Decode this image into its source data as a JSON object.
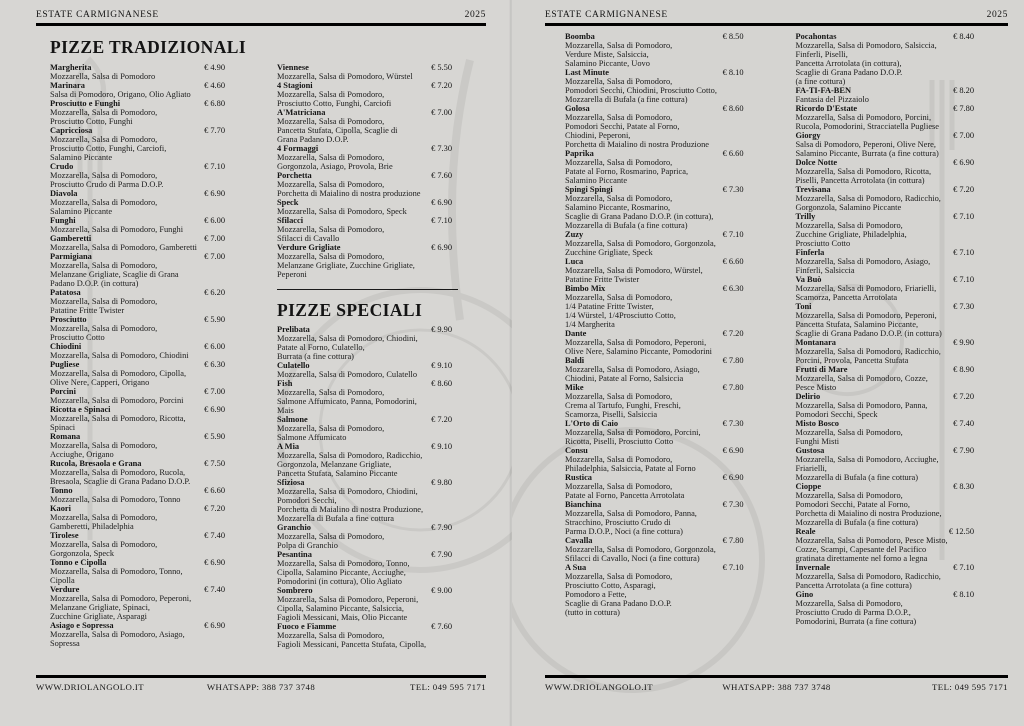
{
  "header": {
    "brand": "ESTATE CARMIGNANESE",
    "year": "2025"
  },
  "footer": {
    "website": "WWW.DRIOLANGOLO.IT",
    "whatsapp": "WHATSAPP: 388 737 3748",
    "phone": "TEL: 049 595 7171"
  },
  "colors": {
    "ink": "#141414",
    "paper": "#d7d6d3",
    "rule": "#000000"
  },
  "pages": [
    {
      "title": "PIZZE TRADIZIONALI",
      "columns": [
        [
          {
            "name": "Margherita",
            "price": "€ 4.90",
            "desc": "Mozzarella, Salsa di Pomodoro"
          },
          {
            "name": "Marinara",
            "price": "€ 4.60",
            "desc": "Salsa di Pomodoro, Origano, Olio Agliato"
          },
          {
            "name": "Prosciutto e Funghi",
            "price": "€ 6.80",
            "desc": "Mozzarella, Salsa di Pomodoro,\nProsciutto Cotto, Funghi"
          },
          {
            "name": "Capricciosa",
            "price": "€ 7.70",
            "desc": "Mozzarella, Salsa di Pomodoro,\nProsciutto Cotto, Funghi, Carciofi,\nSalamino Piccante"
          },
          {
            "name": "Crudo",
            "price": "€ 7.10",
            "desc": "Mozzarella, Salsa di Pomodoro,\nProsciutto Crudo di Parma D.O.P."
          },
          {
            "name": "Diavola",
            "price": "€ 6.90",
            "desc": "Mozzarella, Salsa di Pomodoro,\nSalamino Piccante"
          },
          {
            "name": "Funghi",
            "price": "€ 6.00",
            "desc": "Mozzarella, Salsa di Pomodoro, Funghi"
          },
          {
            "name": "Gamberetti",
            "price": "€ 7.00",
            "desc": "Mozzarella, Salsa di Pomodoro, Gamberetti"
          },
          {
            "name": "Parmigiana",
            "price": "€ 7.00",
            "desc": "Mozzarella, Salsa di Pomodoro,\nMelanzane Grigliate, Scaglie di Grana\nPadano D.O.P. (in cottura)"
          },
          {
            "name": "Patatosa",
            "price": "€ 6.20",
            "desc": "Mozzarella, Salsa di Pomodoro,\nPatatine Fritte Twister"
          },
          {
            "name": "Prosciutto",
            "price": "€ 5.90",
            "desc": "Mozzarella, Salsa di Pomodoro,\nProsciutto Cotto"
          },
          {
            "name": "Chiodini",
            "price": "€ 6.00",
            "desc": "Mozzarella, Salsa di Pomodoro, Chiodini"
          },
          {
            "name": "Pugliese",
            "price": "€ 6.30",
            "desc": "Mozzarella, Salsa di Pomodoro, Cipolla,\nOlive Nere, Capperi, Origano"
          },
          {
            "name": "Porcini",
            "price": "€ 7.00",
            "desc": "Mozzarella, Salsa di Pomodoro, Porcini"
          },
          {
            "name": "Ricotta e Spinaci",
            "price": "€ 6.90",
            "desc": "Mozzarella, Salsa di Pomodoro, Ricotta,\nSpinaci"
          },
          {
            "name": "Romana",
            "price": "€ 5.90",
            "desc": "Mozzarella, Salsa di Pomodoro,\nAcciughe, Origano"
          },
          {
            "name": "Rucola, Bresaola e Grana",
            "price": "€ 7.50",
            "desc": "Mozzarella, Salsa di Pomodoro, Rucola,\nBresaola, Scaglie di Grana Padano D.O.P."
          },
          {
            "name": "Tonno",
            "price": "€ 6.60",
            "desc": "Mozzarella, Salsa di Pomodoro, Tonno"
          },
          {
            "name": "Kaori",
            "price": "€ 7.20",
            "desc": "Mozzarella, Salsa di Pomodoro,\nGamberetti, Philadelphia"
          },
          {
            "name": "Tirolese",
            "price": "€ 7.40",
            "desc": "Mozzarella, Salsa di Pomodoro,\nGorgonzola, Speck"
          },
          {
            "name": "Tonno e Cipolla",
            "price": "€ 6.90",
            "desc": "Mozzarella, Salsa di Pomodoro, Tonno,\nCipolla"
          },
          {
            "name": "Verdure",
            "price": "€ 7.40",
            "desc": "Mozzarella, Salsa di Pomodoro, Peperoni,\nMelanzane Grigliate, Spinaci,\nZucchine Grigliate, Asparagi"
          },
          {
            "name": "Asiago e Sopressa",
            "price": "€ 6.90",
            "desc": "Mozzarella, Salsa di Pomodoro, Asiago,\nSopressa"
          }
        ],
        [
          {
            "name": "Viennese",
            "price": "€ 5.50",
            "desc": "Mozzarella, Salsa di Pomodoro, Würstel"
          },
          {
            "name": "4 Stagioni",
            "price": "€ 7.20",
            "desc": "Mozzarella, Salsa di Pomodoro,\nProsciutto Cotto, Funghi, Carciofi"
          },
          {
            "name": "A'Matriciana",
            "price": "€ 7.00",
            "desc": "Mozzarella, Salsa di Pomodoro,\nPancetta Stufata, Cipolla, Scaglie di\nGrana Padano D.O.P."
          },
          {
            "name": "4 Formaggi",
            "price": "€ 7.30",
            "desc": "Mozzarella, Salsa di Pomodoro,\nGorgonzola, Asiago, Provola, Brie"
          },
          {
            "name": "Porchetta",
            "price": "€ 7.60",
            "desc": "Mozzarella, Salsa di Pomodoro,\nPorchetta di Maialino di nostra produzione"
          },
          {
            "name": "Speck",
            "price": "€ 6.90",
            "desc": "Mozzarella, Salsa di Pomodoro, Speck"
          },
          {
            "name": "Sfilacci",
            "price": "€ 7.10",
            "desc": "Mozzarella, Salsa di Pomodoro,\nSfilacci di Cavallo"
          },
          {
            "name": "Verdure Grigliate",
            "price": "€ 6.90",
            "desc": "Mozzarella, Salsa di Pomodoro,\nMelanzane Grigliate, Zucchine Grigliate,\nPeperoni"
          },
          {
            "divider": true
          },
          {
            "section": "PIZZE SPECIALI"
          },
          {
            "name": "Prelibata",
            "price": "€ 9.90",
            "desc": "Mozzarella, Salsa di Pomodoro, Chiodini,\nPatate al Forno, Culatello,\nBurrata (a fine cottura)"
          },
          {
            "name": "Culatello",
            "price": "€ 9.10",
            "desc": "Mozzarella, Salsa di Pomodoro, Culatello"
          },
          {
            "name": "Fish",
            "price": "€ 8.60",
            "desc": "Mozzarella, Salsa di Pomodoro,\nSalmone Affumicato, Panna, Pomodorini,\nMais"
          },
          {
            "name": "Salmone",
            "price": "€ 7.20",
            "desc": "Mozzarella, Salsa di Pomodoro,\nSalmone Affumicato"
          },
          {
            "name": "A Mia",
            "price": "€ 9.10",
            "desc": "Mozzarella, Salsa di Pomodoro, Radicchio,\nGorgonzola, Melanzane Grigliate,\nPancetta Stufata, Salamino Piccante"
          },
          {
            "name": "Sfiziosa",
            "price": "€ 9.80",
            "desc": "Mozzarella, Salsa di Pomodoro, Chiodini,\nPomodori Secchi,\nPorchetta di Maialino di nostra Produzione,\nMozzarella di Bufala a fine cottura"
          },
          {
            "name": "Granchio",
            "price": "€ 7.90",
            "desc": "Mozzarella, Salsa di Pomodoro,\nPolpa di Granchio"
          },
          {
            "name": "Pesantina",
            "price": "€ 7.90",
            "desc": "Mozzarella, Salsa di Pomodoro, Tonno,\nCipolla, Salamino Piccante, Acciughe,\nPomodorini (in cottura), Olio Agliato"
          },
          {
            "name": "Sombrero",
            "price": "€ 9.00",
            "desc": "Mozzarella, Salsa di Pomodoro, Peperoni,\nCipolla, Salamino Piccante, Salsiccia,\nFagioli Messicani, Mais, Olio Piccante"
          },
          {
            "name": "Fuoco e Fiamme",
            "price": "€ 7.60",
            "desc": "Mozzarella, Salsa di Pomodoro,\nFagioli Messicani, Pancetta Stufata, Cipolla,\nSalamino Piccante, Olio Piccaante"
          }
        ]
      ]
    },
    {
      "title": "",
      "columns": [
        [
          {
            "name": "Boomba",
            "price": "€ 8.50",
            "desc": "Mozzarella, Salsa di Pomodoro,\nVerdure Miste, Salsiccia,\nSalamino Piccante, Uovo"
          },
          {
            "name": "Last Minute",
            "price": "€ 8.10",
            "desc": "Mozzarella, Salsa di Pomodoro,\nPomodori Secchi, Chiodini, Prosciutto Cotto,\nMozzarella di Bufala (a fine cottura)"
          },
          {
            "name": "Golosa",
            "price": "€ 8.60",
            "desc": "Mozzarella, Salsa di Pomodoro,\nPomodori Secchi, Patate al Forno,\nChiodini, Peperoni,\nPorchetta di Maialino di nostra Produzione"
          },
          {
            "name": "Paprika",
            "price": "€ 6.60",
            "desc": "Mozzarella, Salsa di Pomodoro,\nPatate al Forno, Rosmarino, Paprica,\nSalamino Piccante"
          },
          {
            "name": "Spingi Spingi",
            "price": "€ 7.30",
            "desc": "Mozzarella, Salsa di Pomodoro,\nSalamino Piccante, Rosmarino,\nScaglie di Grana Padano D.O.P. (in cottura),\nMozzarella di Bufala (a fine cottura)"
          },
          {
            "name": "Zuzy",
            "price": "€ 7.10",
            "desc": "Mozzarella, Salsa di Pomodoro, Gorgonzola,\nZucchine Grigliate, Speck"
          },
          {
            "name": "Luca",
            "price": "€ 6.60",
            "desc": "Mozzarella, Salsa di Pomodoro, Würstel,\nPatatine Fritte Twister"
          },
          {
            "name": "Bimbo Mix",
            "price": "€ 6.30",
            "desc": "Mozzarella, Salsa di Pomodoro,\n1/4 Patatine Fritte Twister,\n1/4 Würstel, 1/4Prosciutto Cotto,\n1/4 Margherita"
          },
          {
            "name": "Dante",
            "price": "€ 7.20",
            "desc": "Mozzarella, Salsa di Pomodoro, Peperoni,\nOlive Nere, Salamino Piccante, Pomodorini"
          },
          {
            "name": "Baldi",
            "price": "€ 7.80",
            "desc": "Mozzarella, Salsa di Pomodoro, Asiago,\nChiodini, Patate al Forno, Salsiccia"
          },
          {
            "name": "Mike",
            "price": "€ 7.80",
            "desc": "Mozzarella, Salsa di Pomodoro,\nCrema al Tartufo, Funghi, Freschi,\nScamorza, Piselli, Salsiccia"
          },
          {
            "name": "L'Orto di Caio",
            "price": "€ 7.30",
            "desc": "Mozzarella, Salsa di Pomodoro, Porcini,\nRicotta, Piselli, Prosciutto Cotto"
          },
          {
            "name": "Consu",
            "price": "€ 6.90",
            "desc": "Mozzarella, Salsa di Pomodoro,\nPhiladelphia, Salsiccia, Patate al Forno"
          },
          {
            "name": "Rustica",
            "price": "€ 6.90",
            "desc": "Mozzarella, Salsa di Pomodoro,\nPatate al Forno, Pancetta Arrotolata"
          },
          {
            "name": "Bianchina",
            "price": "€ 7.30",
            "desc": "Mozzarella, Salsa di Pomodoro, Panna,\nStracchino, Prosciutto Crudo di\nParma D.O.P., Noci (a fine cottura)"
          },
          {
            "name": "Cavalla",
            "price": "€ 7.80",
            "desc": "Mozzarella, Salsa di Pomodoro, Gorgonzola,\nSfilacci di Cavallo, Noci (a fine cottura)"
          },
          {
            "name": "A Sua",
            "price": "€ 7.10",
            "desc": "Mozzarella, Salsa di Pomodoro,\nProsciutto Cotto, Asparagi,\nPomodoro a Fette,\nScaglie di Grana Padano D.O.P.\n(tutto in cottura)"
          }
        ],
        [
          {
            "name": "Pocahontas",
            "price": "€ 8.40",
            "desc": "Mozzarella, Salsa di Pomodoro, Salsiccia,\nFinferli, Piselli,\nPancetta Arrotolata (in cottura),\nScaglie di Grana Padano D.O.P.\n(a fine cottura)"
          },
          {
            "name": "FA-TI-FA-BEN",
            "price": "€ 8.20",
            "desc": "Fantasia del Pizzaiolo"
          },
          {
            "name": "Ricordo D'Estate",
            "price": "€ 7.80",
            "desc": "Mozzarella, Salsa di Pomodoro, Porcini,\nRucola, Pomodorini, Stracciatella Pugliese"
          },
          {
            "name": "Giorgy",
            "price": "€ 7.00",
            "desc": "Salsa di Pomodoro, Peperoni, Olive Nere,\nSalamino Piccante, Burrata (a fine cottura)"
          },
          {
            "name": "Dolce Notte",
            "price": "€ 6.90",
            "desc": "Mozzarella, Salsa di Pomodoro, Ricotta,\nPiselli, Pancetta Arrotolata (in cottura)"
          },
          {
            "name": "Trevisana",
            "price": "€ 7.20",
            "desc": "Mozzarella, Salsa di Pomodoro, Radicchio,\nGorgonzola, Salamino Piccante"
          },
          {
            "name": "Trilly",
            "price": "€ 7.10",
            "desc": "Mozzarella, Salsa di Pomodoro,\nZucchine Grigliate, Philadelphia,\nProsciutto Cotto"
          },
          {
            "name": "Finferla",
            "price": "€ 7.10",
            "desc": "Mozzarella, Salsa di Pomodoro, Asiago,\nFinferli, Salsiccia"
          },
          {
            "name": "Va Buò",
            "price": "€ 7.10",
            "desc": "Mozzarella, Salsa di Pomodoro, Friarielli,\nScamorza, Pancetta Arrotolata"
          },
          {
            "name": "Toni",
            "price": "€ 7.30",
            "desc": "Mozzarella, Salsa di Pomodoro, Peperoni,\nPancetta Stufata, Salamino Piccante,\nScaglie di Grana Padano D.O.P. (in cottura)"
          },
          {
            "name": "Montanara",
            "price": "€ 9.90",
            "desc": "Mozzarella, Salsa di Pomodoro, Radicchio,\nPorcini, Provola, Pancetta Stufata"
          },
          {
            "name": "Frutti di Mare",
            "price": "€ 8.90",
            "desc": "Mozzarella, Salsa di Pomodoro, Cozze,\nPesce Misto"
          },
          {
            "name": "Delirio",
            "price": "€ 7.20",
            "desc": "Mozzarella, Salsa di Pomodoro, Panna,\nPomodori Secchi, Speck"
          },
          {
            "name": "Misto Bosco",
            "price": "€ 7.40",
            "desc": "Mozzarella, Salsa di Pomodoro,\nFunghi Misti"
          },
          {
            "name": "Gustosa",
            "price": "€ 7.90",
            "desc": "Mozzarella, Salsa di Pomodoro, Acciughe,\nFriarielli,\nMozzarella di Bufala (a fine cottura)"
          },
          {
            "name": "Cioppe",
            "price": "€ 8.30",
            "desc": "Mozzarella, Salsa di Pomodoro,\nPomodori Secchi, Patate al Forno,\nPorchetta di Maialino di nostra Produzione,\nMozzarella di Bufala (a fine cottura)"
          },
          {
            "name": "Reale",
            "price": "€ 12.50",
            "desc": "Mozzarella, Salsa di Pomodoro, Pesce Misto,\nCozze, Scampi, Capesante del Pacifico\ngratinata direttamente nel forno a legna"
          },
          {
            "name": "Invernale",
            "price": "€ 7.10",
            "desc": "Mozzarella, Salsa di Pomodoro, Radicchio,\nPancetta Arrotolata (a fine cottura)"
          },
          {
            "name": "Gino",
            "price": "€ 8.10",
            "desc": "Mozzarella, Salsa di Pomodoro,\nProsciutto Crudo di Parma D.O.P.,\nPomodorini, Burrata (a fine cottura)"
          }
        ]
      ]
    }
  ]
}
